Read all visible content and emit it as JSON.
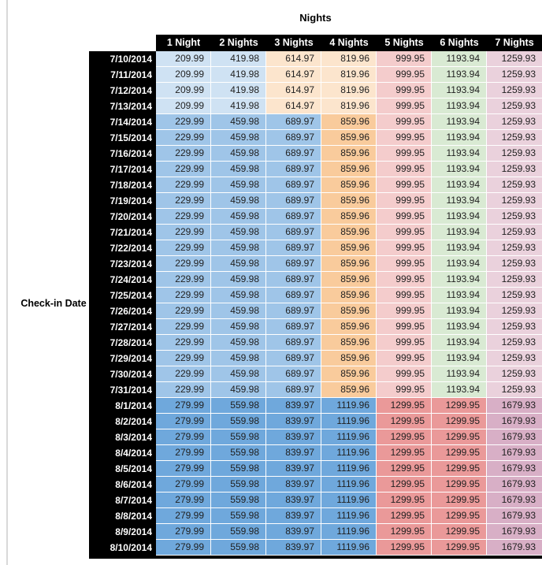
{
  "chart_data": {
    "type": "table",
    "title": "Nights",
    "row_axis_label": "Check-in Date",
    "columns": [
      "1 Night",
      "2 Nights",
      "3 Nights",
      "4 Nights",
      "5 Nights",
      "6 Nights",
      "7 Nights"
    ],
    "palette": {
      "light_blue": "#CFE2F3",
      "med_blue": "#9FC5E8",
      "dark_blue": "#6FA8DC",
      "light_orange": "#FCE5CD",
      "med_orange": "#F9CB9C",
      "light_red": "#F4CCCC",
      "salmon": "#EA9999",
      "light_green": "#D9EAD3",
      "light_pink": "#EAD1DC",
      "mauve": "#D8AFC6"
    },
    "groups": {
      "g1": {
        "values": [
          "209.99",
          "419.98",
          "614.97",
          "819.96",
          "999.95",
          "1193.94",
          "1259.93"
        ],
        "colors": [
          "light_blue",
          "light_blue",
          "light_orange",
          "light_orange",
          "light_red",
          "light_green",
          "light_pink"
        ]
      },
      "g2": {
        "values": [
          "229.99",
          "459.98",
          "689.97",
          "859.96",
          "999.95",
          "1193.94",
          "1259.93"
        ],
        "colors": [
          "med_blue",
          "med_blue",
          "med_blue",
          "med_orange",
          "light_red",
          "light_green",
          "light_pink"
        ]
      },
      "g3": {
        "values": [
          "279.99",
          "559.98",
          "839.97",
          "1119.96",
          "1299.95",
          "1299.95",
          "1679.93"
        ],
        "colors": [
          "dark_blue",
          "dark_blue",
          "dark_blue",
          "dark_blue",
          "salmon",
          "salmon",
          "mauve"
        ]
      }
    },
    "rows": [
      {
        "date": "7/10/2014",
        "group": "g1"
      },
      {
        "date": "7/11/2014",
        "group": "g1"
      },
      {
        "date": "7/12/2014",
        "group": "g1"
      },
      {
        "date": "7/13/2014",
        "group": "g1"
      },
      {
        "date": "7/14/2014",
        "group": "g2"
      },
      {
        "date": "7/15/2014",
        "group": "g2"
      },
      {
        "date": "7/16/2014",
        "group": "g2"
      },
      {
        "date": "7/17/2014",
        "group": "g2"
      },
      {
        "date": "7/18/2014",
        "group": "g2"
      },
      {
        "date": "7/19/2014",
        "group": "g2"
      },
      {
        "date": "7/20/2014",
        "group": "g2"
      },
      {
        "date": "7/21/2014",
        "group": "g2"
      },
      {
        "date": "7/22/2014",
        "group": "g2"
      },
      {
        "date": "7/23/2014",
        "group": "g2"
      },
      {
        "date": "7/24/2014",
        "group": "g2"
      },
      {
        "date": "7/25/2014",
        "group": "g2"
      },
      {
        "date": "7/26/2014",
        "group": "g2"
      },
      {
        "date": "7/27/2014",
        "group": "g2"
      },
      {
        "date": "7/28/2014",
        "group": "g2"
      },
      {
        "date": "7/29/2014",
        "group": "g2"
      },
      {
        "date": "7/30/2014",
        "group": "g2"
      },
      {
        "date": "7/31/2014",
        "group": "g2"
      },
      {
        "date": "8/1/2014",
        "group": "g3"
      },
      {
        "date": "8/2/2014",
        "group": "g3"
      },
      {
        "date": "8/3/2014",
        "group": "g3"
      },
      {
        "date": "8/4/2014",
        "group": "g3"
      },
      {
        "date": "8/5/2014",
        "group": "g3"
      },
      {
        "date": "8/6/2014",
        "group": "g3"
      },
      {
        "date": "8/7/2014",
        "group": "g3"
      },
      {
        "date": "8/8/2014",
        "group": "g3"
      },
      {
        "date": "8/9/2014",
        "group": "g3"
      },
      {
        "date": "8/10/2014",
        "group": "g3"
      }
    ]
  }
}
